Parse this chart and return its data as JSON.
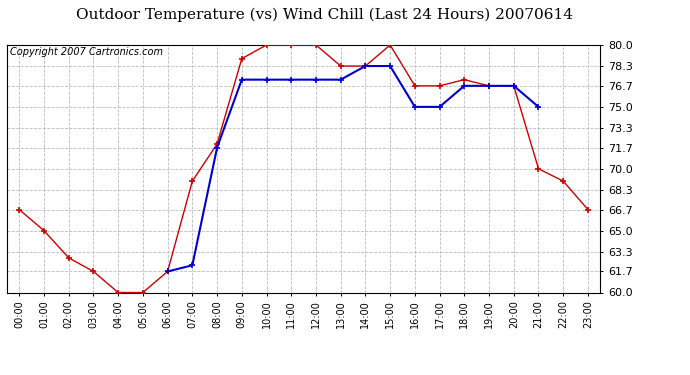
{
  "title": "Outdoor Temperature (vs) Wind Chill (Last 24 Hours) 20070614",
  "copyright": "Copyright 2007 Cartronics.com",
  "hours": [
    "00:00",
    "01:00",
    "02:00",
    "03:00",
    "04:00",
    "05:00",
    "06:00",
    "07:00",
    "08:00",
    "09:00",
    "10:00",
    "11:00",
    "12:00",
    "13:00",
    "14:00",
    "15:00",
    "16:00",
    "17:00",
    "18:00",
    "19:00",
    "20:00",
    "21:00",
    "22:00",
    "23:00"
  ],
  "temp": [
    66.7,
    65.0,
    62.8,
    61.7,
    60.0,
    60.0,
    61.7,
    69.0,
    72.0,
    78.9,
    80.0,
    80.0,
    80.0,
    78.3,
    78.3,
    80.0,
    76.7,
    76.7,
    77.2,
    76.7,
    76.7,
    70.0,
    69.0,
    66.7
  ],
  "wind_chill": [
    null,
    null,
    null,
    null,
    null,
    null,
    61.7,
    62.2,
    71.7,
    77.2,
    77.2,
    77.2,
    77.2,
    77.2,
    78.3,
    78.3,
    75.0,
    75.0,
    76.7,
    76.7,
    76.7,
    75.0,
    null,
    null
  ],
  "temp_color": "#cc0000",
  "wind_chill_color": "#0000cc",
  "ylim_min": 60.0,
  "ylim_max": 80.0,
  "yticks": [
    60.0,
    61.7,
    63.3,
    65.0,
    66.7,
    68.3,
    70.0,
    71.7,
    73.3,
    75.0,
    76.7,
    78.3,
    80.0
  ],
  "bg_color": "#ffffff",
  "grid_color": "#bbbbbb",
  "title_fontsize": 11,
  "copyright_fontsize": 7
}
